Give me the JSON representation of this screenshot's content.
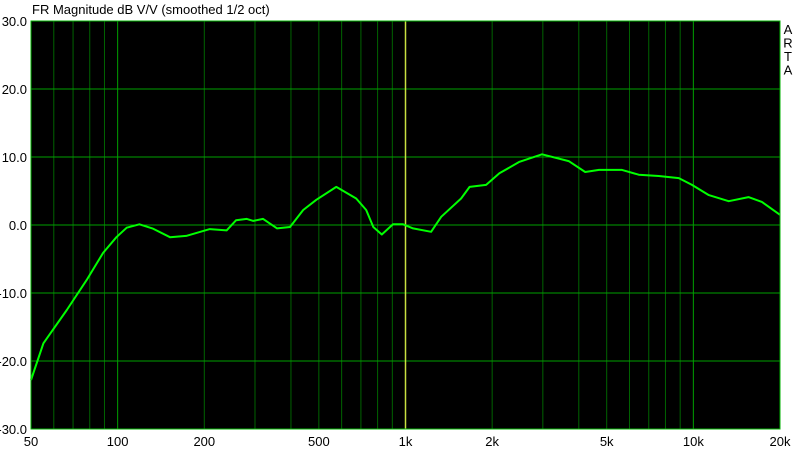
{
  "chart_data": {
    "type": "line",
    "title": "FR Magnitude dB V/V (smoothed 1/2 oct)",
    "watermark": "ARTA",
    "x_scale": "log",
    "xlim": [
      50,
      20000
    ],
    "ylim": [
      -30,
      30
    ],
    "x_ticks": [
      50,
      100,
      200,
      500,
      1000,
      2000,
      5000,
      10000,
      20000
    ],
    "x_tick_labels": [
      "50",
      "100",
      "200",
      "500",
      "1k",
      "2k",
      "5k",
      "10k",
      "20k"
    ],
    "y_ticks": [
      30,
      20,
      10,
      0,
      -10,
      -20,
      -30
    ],
    "y_tick_labels": [
      "30.0",
      "20.0",
      "10.0",
      "0.0",
      "-10.0",
      "-20.0",
      "-30.0"
    ],
    "grid": true,
    "cursor_frequency": 1000,
    "colors": {
      "background": "#000000",
      "trace": "#00ff00",
      "major_grid": "#00a000",
      "minor_grid": "#006400",
      "cursor": "#c8e040"
    },
    "series": [
      {
        "x": [
          50,
          55.2,
          66.6,
          78,
          89,
          99,
          107.5,
          119,
          132,
          152,
          173,
          209,
          239,
          258,
          281,
          296,
          320,
          358,
          397,
          441,
          490,
          575,
          674,
          730,
          773,
          827,
          905,
          980,
          1063,
          1227,
          1330,
          1560,
          1670,
          1905,
          2120,
          2490,
          2980,
          3690,
          4210,
          4700,
          5650,
          6460,
          7580,
          8900,
          9890,
          11320,
          13270,
          15550,
          17310,
          20000
        ],
        "y": [
          -22.8,
          -17.4,
          -12.5,
          -8.1,
          -4.1,
          -1.8,
          -0.4,
          0.1,
          -0.5,
          -1.8,
          -1.6,
          -0.6,
          -0.8,
          0.7,
          0.9,
          0.6,
          0.9,
          -0.5,
          -0.3,
          2.2,
          3.7,
          5.6,
          3.9,
          2.2,
          -0.3,
          -1.4,
          0.1,
          0.1,
          -0.5,
          -1.0,
          1.2,
          3.9,
          5.6,
          5.9,
          7.6,
          9.3,
          10.4,
          9.4,
          7.8,
          8.1,
          8.1,
          7.4,
          7.2,
          6.9,
          5.9,
          4.4,
          3.5,
          4.1,
          3.4,
          1.5
        ]
      }
    ]
  }
}
